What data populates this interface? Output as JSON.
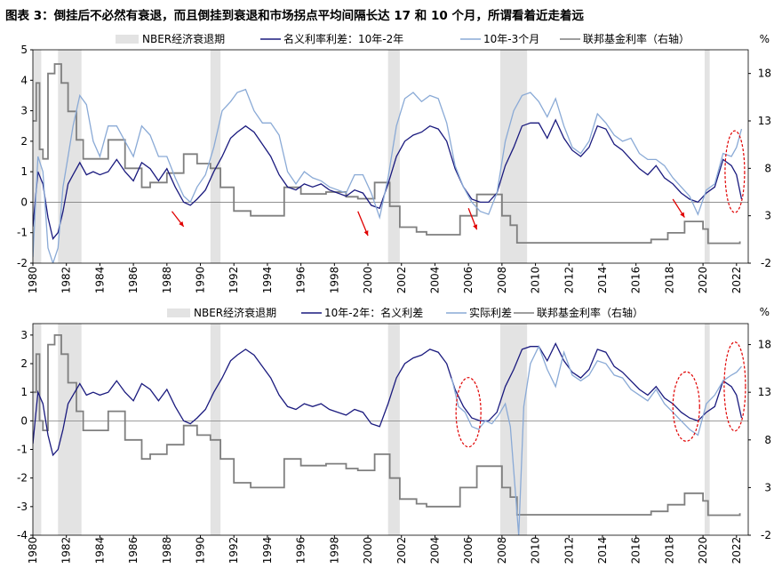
{
  "figure_title": "图表 3：倒挂后不必然有衰退，而且倒挂到衰退和市场拐点平均间隔长达 17 和 10 个月，所谓看着近走着远",
  "chart_data": [
    {
      "type": "line",
      "title": "",
      "left_unit": "",
      "right_unit": "%",
      "left_axis": {
        "range": [
          -2,
          5
        ],
        "ticks": [
          5,
          4,
          3,
          2,
          1,
          0,
          -1,
          -2
        ]
      },
      "right_axis": {
        "range": [
          -2,
          20.5
        ],
        "ticks": [
          18,
          13,
          8,
          3,
          -2
        ]
      },
      "x_range": [
        1980,
        2022.7
      ],
      "x_ticks": [
        1980,
        1982,
        1984,
        1986,
        1988,
        1990,
        1992,
        1994,
        1996,
        1998,
        2000,
        2002,
        2004,
        2006,
        2008,
        2010,
        2012,
        2014,
        2016,
        2018,
        2020,
        2022
      ],
      "legend": [
        "NBER经济衰退期",
        "名义利率利差：10年-2年",
        "10年-3个月",
        "联邦基金利率（右轴）"
      ],
      "recessions": [
        [
          1980.0,
          1980.5
        ],
        [
          1981.5,
          1982.9
        ],
        [
          1990.6,
          1991.2
        ],
        [
          2001.2,
          2001.9
        ],
        [
          2007.9,
          2009.5
        ],
        [
          2020.1,
          2020.4
        ]
      ],
      "series": [
        {
          "name": "名义利率利差：10年-2年",
          "color": "#1a1a7e",
          "axis": "left",
          "x": [
            1980.0,
            1980.3,
            1980.6,
            1980.9,
            1981.2,
            1981.5,
            1981.8,
            1982.1,
            1982.4,
            1982.8,
            1983.2,
            1983.6,
            1984.0,
            1984.5,
            1985.0,
            1985.5,
            1986.0,
            1986.5,
            1987.0,
            1987.5,
            1988.0,
            1988.5,
            1989.0,
            1989.4,
            1989.8,
            1990.3,
            1990.8,
            1991.3,
            1991.8,
            1992.2,
            1992.7,
            1993.2,
            1993.7,
            1994.2,
            1994.7,
            1995.2,
            1995.7,
            1996.2,
            1996.7,
            1997.2,
            1997.7,
            1998.2,
            1998.7,
            1999.2,
            1999.7,
            2000.2,
            2000.7,
            2001.2,
            2001.7,
            2002.2,
            2002.7,
            2003.2,
            2003.7,
            2004.2,
            2004.7,
            2005.2,
            2005.7,
            2006.2,
            2006.7,
            2007.2,
            2007.7,
            2008.2,
            2008.7,
            2009.2,
            2009.7,
            2010.2,
            2010.7,
            2011.2,
            2011.7,
            2012.2,
            2012.7,
            2013.2,
            2013.7,
            2014.2,
            2014.7,
            2015.2,
            2015.7,
            2016.2,
            2016.7,
            2017.2,
            2017.7,
            2018.2,
            2018.7,
            2019.2,
            2019.7,
            2020.2,
            2020.7,
            2021.2,
            2021.7,
            2022.0,
            2022.3
          ],
          "y": [
            -0.8,
            1.0,
            0.6,
            -0.5,
            -1.2,
            -1.0,
            -0.3,
            0.6,
            0.9,
            1.3,
            0.9,
            1.0,
            0.9,
            1.0,
            1.4,
            1.0,
            0.7,
            1.3,
            1.1,
            0.7,
            1.1,
            0.5,
            0.0,
            -0.1,
            0.1,
            0.4,
            1.0,
            1.5,
            2.1,
            2.3,
            2.5,
            2.3,
            1.9,
            1.5,
            0.9,
            0.5,
            0.4,
            0.6,
            0.5,
            0.6,
            0.4,
            0.3,
            0.2,
            0.4,
            0.3,
            -0.1,
            -0.2,
            0.6,
            1.5,
            2.0,
            2.2,
            2.3,
            2.5,
            2.4,
            2.0,
            1.1,
            0.5,
            0.1,
            0.0,
            0.0,
            0.3,
            1.2,
            1.8,
            2.5,
            2.6,
            2.6,
            2.1,
            2.7,
            2.1,
            1.7,
            1.5,
            1.8,
            2.5,
            2.4,
            1.9,
            1.7,
            1.4,
            1.1,
            0.9,
            1.2,
            0.8,
            0.6,
            0.3,
            0.1,
            0.0,
            0.3,
            0.5,
            1.4,
            1.2,
            0.9,
            0.1
          ]
        },
        {
          "name": "10年-3个月",
          "color": "#8aaad6",
          "axis": "left",
          "x": [
            1980.0,
            1980.3,
            1980.6,
            1980.9,
            1981.2,
            1981.5,
            1981.8,
            1982.1,
            1982.4,
            1982.8,
            1983.2,
            1983.6,
            1984.0,
            1984.5,
            1985.0,
            1985.5,
            1986.0,
            1986.5,
            1987.0,
            1987.5,
            1988.0,
            1988.5,
            1989.0,
            1989.4,
            1989.8,
            1990.3,
            1990.8,
            1991.3,
            1991.8,
            1992.2,
            1992.7,
            1993.2,
            1993.7,
            1994.2,
            1994.7,
            1995.2,
            1995.7,
            1996.2,
            1996.7,
            1997.2,
            1997.7,
            1998.2,
            1998.7,
            1999.2,
            1999.7,
            2000.2,
            2000.7,
            2001.2,
            2001.7,
            2002.2,
            2002.7,
            2003.2,
            2003.7,
            2004.2,
            2004.7,
            2005.2,
            2005.7,
            2006.2,
            2006.7,
            2007.2,
            2007.7,
            2008.2,
            2008.7,
            2009.2,
            2009.7,
            2010.2,
            2010.7,
            2011.2,
            2011.7,
            2012.2,
            2012.7,
            2013.2,
            2013.7,
            2014.2,
            2014.7,
            2015.2,
            2015.7,
            2016.2,
            2016.7,
            2017.2,
            2017.7,
            2018.2,
            2018.7,
            2019.2,
            2019.7,
            2020.2,
            2020.7,
            2021.2,
            2021.7,
            2022.0,
            2022.3
          ],
          "y": [
            -1.8,
            1.5,
            1.0,
            -1.5,
            -2.0,
            -1.5,
            0.5,
            1.5,
            2.5,
            3.5,
            3.2,
            2.0,
            1.5,
            2.5,
            2.5,
            2.0,
            1.5,
            2.5,
            2.2,
            1.5,
            1.5,
            0.8,
            0.2,
            0.0,
            0.5,
            0.9,
            1.8,
            3.0,
            3.3,
            3.6,
            3.7,
            3.0,
            2.6,
            2.6,
            2.2,
            1.0,
            0.6,
            1.0,
            0.8,
            0.7,
            0.5,
            0.4,
            0.3,
            0.9,
            0.9,
            0.3,
            -0.5,
            0.8,
            2.5,
            3.4,
            3.6,
            3.3,
            3.5,
            3.4,
            2.6,
            1.2,
            0.5,
            0.0,
            -0.3,
            -0.4,
            0.3,
            2.0,
            3.0,
            3.5,
            3.6,
            3.3,
            2.8,
            3.4,
            2.5,
            1.8,
            1.6,
            2.0,
            2.9,
            2.6,
            2.2,
            2.0,
            2.1,
            1.6,
            1.4,
            1.4,
            1.2,
            0.8,
            0.5,
            0.2,
            -0.4,
            0.4,
            0.6,
            1.6,
            1.5,
            1.8,
            2.4
          ]
        },
        {
          "name": "联邦基金利率（右轴）",
          "color": "#7f7f7f",
          "axis": "right",
          "x": [
            1980.0,
            1980.2,
            1980.4,
            1980.6,
            1980.9,
            1981.3,
            1981.7,
            1982.1,
            1982.6,
            1983.0,
            1984.5,
            1985.5,
            1986.5,
            1987.0,
            1988.0,
            1989.0,
            1989.8,
            1990.6,
            1991.2,
            1992.0,
            1993.0,
            1994.0,
            1995.0,
            1996.0,
            1997.5,
            1998.7,
            1999.4,
            2000.4,
            2000.9,
            2001.3,
            2001.9,
            2002.9,
            2003.5,
            2004.5,
            2005.5,
            2006.5,
            2007.5,
            2008.0,
            2008.5,
            2008.9,
            2015.9,
            2016.9,
            2017.9,
            2018.9,
            2019.5,
            2020.0,
            2020.3,
            2022.2
          ],
          "y": [
            13,
            17,
            10,
            9,
            18,
            19,
            17,
            14,
            11,
            9,
            11,
            8,
            6,
            6.5,
            7.5,
            9.5,
            8.5,
            8,
            6,
            3.5,
            3,
            3,
            6,
            5.3,
            5.5,
            5,
            4.8,
            6.5,
            6.5,
            4,
            1.8,
            1.3,
            1,
            1,
            3,
            5.25,
            5.25,
            3,
            2,
            0.15,
            0.15,
            0.5,
            1.2,
            2.4,
            2.4,
            1.6,
            0.1,
            0.3
          ]
        }
      ]
    },
    {
      "type": "line",
      "title": "",
      "left_unit": "",
      "right_unit": "%",
      "left_axis": {
        "range": [
          -4,
          3.4
        ],
        "ticks": [
          3,
          2,
          1,
          0,
          -1,
          -2,
          -3,
          -4
        ]
      },
      "right_axis": {
        "range": [
          -2,
          20.2
        ],
        "ticks": [
          18,
          13,
          8,
          3,
          -2
        ]
      },
      "x_range": [
        1980,
        2022.7
      ],
      "x_ticks": [
        1980,
        1982,
        1984,
        1986,
        1988,
        1990,
        1992,
        1994,
        1996,
        1998,
        2000,
        2002,
        2004,
        2006,
        2008,
        2010,
        2012,
        2014,
        2016,
        2018,
        2020,
        2022
      ],
      "legend": [
        "NBER经济衰退期",
        "10年-2年：名义利差",
        "实际利差",
        "联邦基金利率（右轴）"
      ],
      "recessions": [
        [
          1980.0,
          1980.5
        ],
        [
          1981.5,
          1982.9
        ],
        [
          1990.6,
          1991.2
        ],
        [
          2001.2,
          2001.9
        ],
        [
          2007.9,
          2009.5
        ],
        [
          2020.1,
          2020.4
        ]
      ],
      "series": [
        {
          "name": "10年-2年：名义利差",
          "color": "#1a1a7e",
          "axis": "left",
          "x": [
            1980.0,
            1980.3,
            1980.6,
            1980.9,
            1981.2,
            1981.5,
            1981.8,
            1982.1,
            1982.4,
            1982.8,
            1983.2,
            1983.6,
            1984.0,
            1984.5,
            1985.0,
            1985.5,
            1986.0,
            1986.5,
            1987.0,
            1987.5,
            1988.0,
            1988.5,
            1989.0,
            1989.4,
            1989.8,
            1990.3,
            1990.8,
            1991.3,
            1991.8,
            1992.2,
            1992.7,
            1993.2,
            1993.7,
            1994.2,
            1994.7,
            1995.2,
            1995.7,
            1996.2,
            1996.7,
            1997.2,
            1997.7,
            1998.2,
            1998.7,
            1999.2,
            1999.7,
            2000.2,
            2000.7,
            2001.2,
            2001.7,
            2002.2,
            2002.7,
            2003.2,
            2003.7,
            2004.2,
            2004.7,
            2005.2,
            2005.7,
            2006.2,
            2006.7,
            2007.2,
            2007.7,
            2008.2,
            2008.7,
            2009.2,
            2009.7,
            2010.2,
            2010.7,
            2011.2,
            2011.7,
            2012.2,
            2012.7,
            2013.2,
            2013.7,
            2014.2,
            2014.7,
            2015.2,
            2015.7,
            2016.2,
            2016.7,
            2017.2,
            2017.7,
            2018.2,
            2018.7,
            2019.2,
            2019.7,
            2020.2,
            2020.7,
            2021.2,
            2021.7,
            2022.0,
            2022.3
          ],
          "y": [
            -0.8,
            1.0,
            0.6,
            -0.5,
            -1.2,
            -1.0,
            -0.3,
            0.6,
            0.9,
            1.3,
            0.9,
            1.0,
            0.9,
            1.0,
            1.4,
            1.0,
            0.7,
            1.3,
            1.1,
            0.7,
            1.1,
            0.5,
            0.0,
            -0.1,
            0.1,
            0.4,
            1.0,
            1.5,
            2.1,
            2.3,
            2.5,
            2.3,
            1.9,
            1.5,
            0.9,
            0.5,
            0.4,
            0.6,
            0.5,
            0.6,
            0.4,
            0.3,
            0.2,
            0.4,
            0.3,
            -0.1,
            -0.2,
            0.6,
            1.5,
            2.0,
            2.2,
            2.3,
            2.5,
            2.4,
            2.0,
            1.1,
            0.5,
            0.1,
            0.0,
            0.0,
            0.3,
            1.2,
            1.8,
            2.5,
            2.6,
            2.6,
            2.1,
            2.7,
            2.1,
            1.7,
            1.5,
            1.8,
            2.5,
            2.4,
            1.9,
            1.7,
            1.4,
            1.1,
            0.9,
            1.2,
            0.8,
            0.6,
            0.3,
            0.1,
            0.0,
            0.3,
            0.5,
            1.4,
            1.2,
            0.9,
            0.1
          ]
        },
        {
          "name": "实际利差",
          "color": "#8aaad6",
          "axis": "left",
          "x": [
            2005.0,
            2005.4,
            2005.8,
            2006.2,
            2006.6,
            2007.0,
            2007.4,
            2007.8,
            2008.2,
            2008.5,
            2008.8,
            2009.0,
            2009.3,
            2009.7,
            2010.2,
            2010.7,
            2011.2,
            2011.7,
            2012.2,
            2012.7,
            2013.2,
            2013.7,
            2014.2,
            2014.7,
            2015.2,
            2015.7,
            2016.2,
            2016.7,
            2017.2,
            2017.7,
            2018.2,
            2018.7,
            2019.2,
            2019.7,
            2020.2,
            2020.7,
            2021.2,
            2021.7,
            2022.0,
            2022.3
          ],
          "y": [
            1.5,
            0.5,
            0.3,
            -0.2,
            -0.3,
            0.0,
            -0.1,
            0.2,
            0.6,
            -0.2,
            -2.5,
            -4.0,
            0.5,
            2.0,
            2.6,
            1.8,
            1.2,
            2.4,
            1.6,
            1.4,
            1.6,
            2.1,
            2.0,
            1.6,
            1.5,
            1.1,
            0.9,
            0.7,
            1.1,
            0.6,
            0.3,
            0.0,
            -0.3,
            -0.5,
            0.6,
            0.9,
            1.4,
            1.6,
            1.7,
            1.9
          ]
        },
        {
          "name": "联邦基金利率（右轴）",
          "color": "#7f7f7f",
          "axis": "right",
          "x": [
            1980.0,
            1980.2,
            1980.4,
            1980.6,
            1980.9,
            1981.3,
            1981.7,
            1982.1,
            1982.6,
            1983.0,
            1984.5,
            1985.5,
            1986.5,
            1987.0,
            1988.0,
            1989.0,
            1989.8,
            1990.6,
            1991.2,
            1992.0,
            1993.0,
            1994.0,
            1995.0,
            1996.0,
            1997.5,
            1998.7,
            1999.4,
            2000.4,
            2000.9,
            2001.3,
            2001.9,
            2002.9,
            2003.5,
            2004.5,
            2005.5,
            2006.5,
            2007.5,
            2008.0,
            2008.5,
            2008.9,
            2015.9,
            2016.9,
            2017.9,
            2018.9,
            2019.5,
            2020.0,
            2020.3,
            2022.2
          ],
          "y": [
            13,
            17,
            10,
            9,
            18,
            19,
            17,
            14,
            11,
            9,
            11,
            8,
            6,
            6.5,
            7.5,
            9.5,
            8.5,
            8,
            6,
            3.5,
            3,
            3,
            6,
            5.3,
            5.5,
            5,
            4.8,
            6.5,
            6.5,
            4,
            1.8,
            1.3,
            1,
            1,
            3,
            5.25,
            5.25,
            3,
            2,
            0.15,
            0.15,
            0.5,
            1.2,
            2.4,
            2.4,
            1.6,
            0.1,
            0.3
          ]
        }
      ]
    }
  ]
}
